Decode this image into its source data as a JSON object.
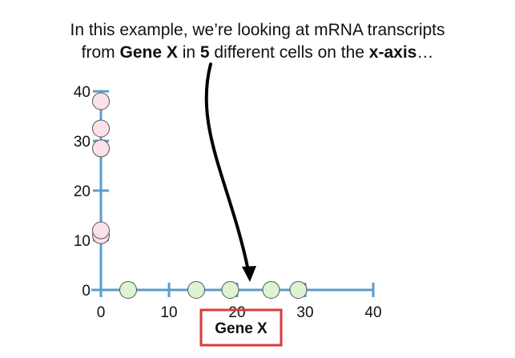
{
  "caption": {
    "line1": "In this example, we’re looking at mRNA transcripts",
    "line2_a": "from ",
    "line2_b": "Gene X",
    "line2_c": " in ",
    "line2_d": "5",
    "line2_e": " different cells on the ",
    "line2_f": "x-axis",
    "line2_g": "…"
  },
  "colors": {
    "axis": "#5a9ccb",
    "x_point_fill": "#dcf4d2",
    "y_point_fill": "#fde1ea",
    "point_stroke": "#555555",
    "highlight_box": "#d93a3a",
    "arrow": "#000000"
  },
  "chart_data": {
    "type": "scatter",
    "xlabel": "Gene X",
    "ylabel": "",
    "xlim": [
      0,
      40
    ],
    "ylim": [
      0,
      40
    ],
    "x_ticks": [
      0,
      10,
      20,
      30,
      40
    ],
    "y_ticks": [
      0,
      10,
      20,
      30,
      40
    ],
    "grid": false,
    "series": [
      {
        "values": [
          [
            4,
            0
          ],
          [
            14,
            0
          ],
          [
            19,
            0
          ],
          [
            25,
            0
          ],
          [
            29,
            0
          ]
        ]
      },
      {
        "values": [
          [
            0,
            11
          ],
          [
            0,
            12
          ],
          [
            0,
            28.5
          ],
          [
            0,
            32.5
          ],
          [
            0,
            38
          ]
        ]
      }
    ],
    "annotations": [
      "Gene X label highlighted with a red box",
      "Curved arrow from caption to the x-axis"
    ]
  }
}
